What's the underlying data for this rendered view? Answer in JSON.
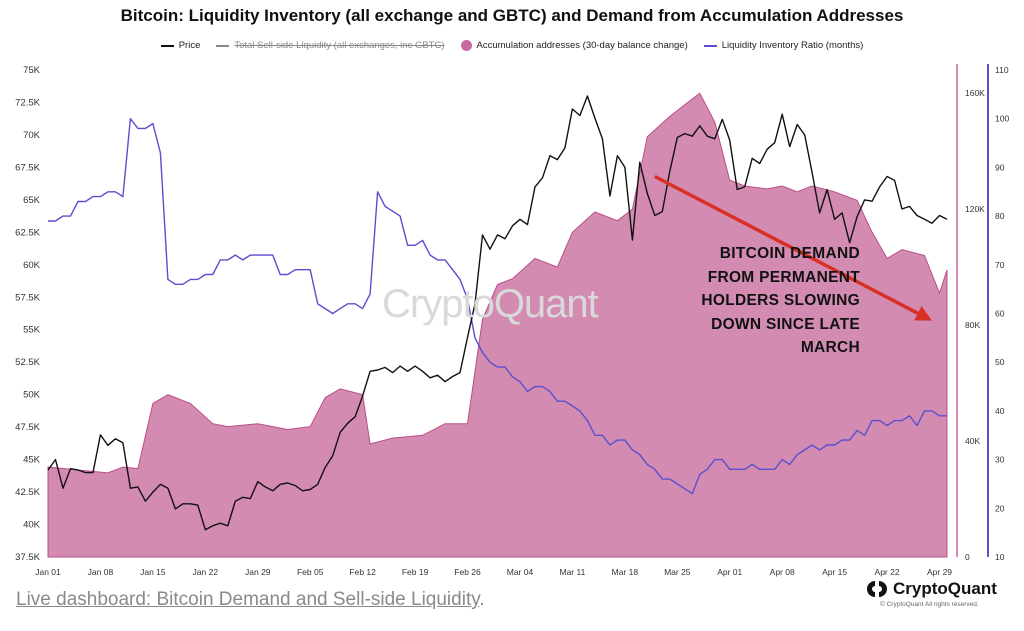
{
  "chart_data": {
    "type": "line",
    "title": "Bitcoin: Liquidity Inventory (all exchange and GBTC) and Demand from Accumulation Addresses",
    "legend": [
      {
        "name": "Price",
        "style": "line",
        "color": "#111111"
      },
      {
        "name": "Total Sell-side Liquidity (all exchanges, inc GBTC)",
        "style": "line-strikethrough",
        "color": "#888888"
      },
      {
        "name": "Accumulation addresses (30-day balance change)",
        "style": "dot",
        "color": "#c86a9c"
      },
      {
        "name": "Liquidity Inventory Ratio (months)",
        "style": "line",
        "color": "#5a4fcf"
      }
    ],
    "legend_position": "top-center",
    "x_ticks": [
      "Jan 01",
      "Jan 08",
      "Jan 15",
      "Jan 22",
      "Jan 29",
      "Feb 05",
      "Feb 12",
      "Feb 19",
      "Feb 26",
      "Mar 04",
      "Mar 11",
      "Mar 18",
      "Mar 25",
      "Apr 01",
      "Apr 08",
      "Apr 15",
      "Apr 22",
      "Apr 29"
    ],
    "x_range": [
      "2024-01-01",
      "2024-04-30"
    ],
    "y_left": {
      "label": "Price",
      "ticks": [
        "37.5K",
        "40K",
        "42.5K",
        "45K",
        "47.5K",
        "50K",
        "52.5K",
        "55K",
        "57.5K",
        "60K",
        "62.5K",
        "65K",
        "67.5K",
        "70K",
        "72.5K",
        "75K"
      ],
      "range": [
        37500,
        75000
      ]
    },
    "y_right_inner": {
      "label": "Accumulation addresses",
      "ticks": [
        "0",
        "40K",
        "80K",
        "120K",
        "160K"
      ],
      "range": [
        0,
        168000
      ]
    },
    "y_right_outer": {
      "label": "Liquidity Inventory Ratio (months)",
      "ticks": [
        "10",
        "20",
        "30",
        "40",
        "50",
        "60",
        "70",
        "80",
        "90",
        "100",
        "110"
      ],
      "range": [
        10,
        110
      ]
    },
    "grid": false,
    "series": [
      {
        "name": "Accumulation addresses (30-day balance change)",
        "type": "area",
        "axis": "right_inner",
        "color": "#c86a9c",
        "x": [
          "2024-01-01",
          "2024-01-05",
          "2024-01-09",
          "2024-01-11",
          "2024-01-13",
          "2024-01-15",
          "2024-01-17",
          "2024-01-20",
          "2024-01-23",
          "2024-01-25",
          "2024-01-29",
          "2024-02-02",
          "2024-02-05",
          "2024-02-07",
          "2024-02-09",
          "2024-02-12",
          "2024-02-13",
          "2024-02-16",
          "2024-02-20",
          "2024-02-23",
          "2024-02-26",
          "2024-02-28",
          "2024-03-01",
          "2024-03-03",
          "2024-03-06",
          "2024-03-09",
          "2024-03-11",
          "2024-03-14",
          "2024-03-17",
          "2024-03-19",
          "2024-03-21",
          "2024-03-24",
          "2024-03-26",
          "2024-03-28",
          "2024-03-30",
          "2024-04-01",
          "2024-04-03",
          "2024-04-06",
          "2024-04-08",
          "2024-04-10",
          "2024-04-12",
          "2024-04-15",
          "2024-04-18",
          "2024-04-20",
          "2024-04-22",
          "2024-04-24",
          "2024-04-27",
          "2024-04-29",
          "2024-04-30"
        ],
        "values": [
          31000,
          30000,
          29000,
          31000,
          30500,
          53000,
          56000,
          53000,
          46000,
          45000,
          46000,
          44000,
          45000,
          55000,
          58000,
          56000,
          39000,
          41000,
          42000,
          46000,
          46000,
          82000,
          94000,
          96000,
          103000,
          100000,
          112000,
          119000,
          116000,
          120000,
          145000,
          152000,
          156000,
          160000,
          150000,
          130000,
          128000,
          127000,
          128000,
          126000,
          128000,
          126000,
          123000,
          112000,
          103000,
          106000,
          104000,
          91000,
          99000
        ]
      },
      {
        "name": "Price",
        "type": "line",
        "axis": "left",
        "color": "#111111",
        "x": [
          "2024-01-01",
          "2024-01-02",
          "2024-01-03",
          "2024-01-04",
          "2024-01-05",
          "2024-01-06",
          "2024-01-07",
          "2024-01-08",
          "2024-01-09",
          "2024-01-10",
          "2024-01-11",
          "2024-01-12",
          "2024-01-13",
          "2024-01-14",
          "2024-01-15",
          "2024-01-16",
          "2024-01-17",
          "2024-01-18",
          "2024-01-19",
          "2024-01-20",
          "2024-01-21",
          "2024-01-22",
          "2024-01-23",
          "2024-01-24",
          "2024-01-25",
          "2024-01-26",
          "2024-01-27",
          "2024-01-28",
          "2024-01-29",
          "2024-01-30",
          "2024-01-31",
          "2024-02-01",
          "2024-02-02",
          "2024-02-03",
          "2024-02-04",
          "2024-02-05",
          "2024-02-06",
          "2024-02-07",
          "2024-02-08",
          "2024-02-09",
          "2024-02-10",
          "2024-02-11",
          "2024-02-12",
          "2024-02-13",
          "2024-02-14",
          "2024-02-15",
          "2024-02-16",
          "2024-02-17",
          "2024-02-18",
          "2024-02-19",
          "2024-02-20",
          "2024-02-21",
          "2024-02-22",
          "2024-02-23",
          "2024-02-24",
          "2024-02-25",
          "2024-02-26",
          "2024-02-27",
          "2024-02-28",
          "2024-02-29",
          "2024-03-01",
          "2024-03-02",
          "2024-03-03",
          "2024-03-04",
          "2024-03-05",
          "2024-03-06",
          "2024-03-07",
          "2024-03-08",
          "2024-03-09",
          "2024-03-10",
          "2024-03-11",
          "2024-03-12",
          "2024-03-13",
          "2024-03-14",
          "2024-03-15",
          "2024-03-16",
          "2024-03-17",
          "2024-03-18",
          "2024-03-19",
          "2024-03-20",
          "2024-03-21",
          "2024-03-22",
          "2024-03-23",
          "2024-03-24",
          "2024-03-25",
          "2024-03-26",
          "2024-03-27",
          "2024-03-28",
          "2024-03-29",
          "2024-03-30",
          "2024-03-31",
          "2024-04-01",
          "2024-04-02",
          "2024-04-03",
          "2024-04-04",
          "2024-04-05",
          "2024-04-06",
          "2024-04-07",
          "2024-04-08",
          "2024-04-09",
          "2024-04-10",
          "2024-04-11",
          "2024-04-12",
          "2024-04-13",
          "2024-04-14",
          "2024-04-15",
          "2024-04-16",
          "2024-04-17",
          "2024-04-18",
          "2024-04-19",
          "2024-04-20",
          "2024-04-21",
          "2024-04-22",
          "2024-04-23",
          "2024-04-24",
          "2024-04-25",
          "2024-04-26",
          "2024-04-27",
          "2024-04-28",
          "2024-04-29",
          "2024-04-30"
        ],
        "values": [
          44200,
          45000,
          42800,
          44300,
          44200,
          44000,
          44000,
          46900,
          46100,
          46600,
          46300,
          42800,
          42900,
          41800,
          42500,
          43100,
          42800,
          41200,
          41600,
          41600,
          41500,
          39600,
          39900,
          40100,
          39900,
          41800,
          42100,
          42000,
          43300,
          42900,
          42600,
          43100,
          43200,
          43000,
          42600,
          42700,
          43100,
          44400,
          45300,
          47100,
          47800,
          48300,
          49900,
          51800,
          51900,
          52100,
          51700,
          52200,
          51800,
          52200,
          51800,
          51300,
          51500,
          51000,
          51400,
          51700,
          54400,
          57000,
          62300,
          61200,
          62300,
          62000,
          63000,
          63500,
          63100,
          66000,
          66700,
          68400,
          68100,
          69000,
          72000,
          71500,
          73000,
          71300,
          69700,
          65300,
          68400,
          67500,
          61900,
          67900,
          65500,
          63800,
          64100,
          67200,
          69800,
          70100,
          69900,
          70700,
          69900,
          69700,
          71200,
          69600,
          65800,
          66000,
          68200,
          67800,
          68900,
          69400,
          71600,
          69100,
          70800,
          70000,
          67100,
          64000,
          65800,
          63500,
          64000,
          61700,
          63700,
          65000,
          64900,
          66000,
          66800,
          66500,
          64300,
          64500,
          63800,
          63500,
          63200,
          63800,
          63500
        ]
      },
      {
        "name": "Liquidity Inventory Ratio (months)",
        "type": "line",
        "axis": "right_outer",
        "color": "#5a4fcf",
        "x": [
          "2024-01-01",
          "2024-01-02",
          "2024-01-03",
          "2024-01-04",
          "2024-01-05",
          "2024-01-06",
          "2024-01-07",
          "2024-01-08",
          "2024-01-09",
          "2024-01-10",
          "2024-01-11",
          "2024-01-12",
          "2024-01-13",
          "2024-01-14",
          "2024-01-15",
          "2024-01-16",
          "2024-01-17",
          "2024-01-18",
          "2024-01-19",
          "2024-01-20",
          "2024-01-21",
          "2024-01-22",
          "2024-01-23",
          "2024-01-24",
          "2024-01-25",
          "2024-01-26",
          "2024-01-27",
          "2024-01-28",
          "2024-01-29",
          "2024-01-30",
          "2024-01-31",
          "2024-02-01",
          "2024-02-02",
          "2024-02-03",
          "2024-02-04",
          "2024-02-05",
          "2024-02-06",
          "2024-02-07",
          "2024-02-08",
          "2024-02-09",
          "2024-02-10",
          "2024-02-11",
          "2024-02-12",
          "2024-02-13",
          "2024-02-14",
          "2024-02-15",
          "2024-02-16",
          "2024-02-17",
          "2024-02-18",
          "2024-02-19",
          "2024-02-20",
          "2024-02-21",
          "2024-02-22",
          "2024-02-23",
          "2024-02-24",
          "2024-02-25",
          "2024-02-26",
          "2024-02-27",
          "2024-02-28",
          "2024-02-29",
          "2024-03-01",
          "2024-03-02",
          "2024-03-03",
          "2024-03-04",
          "2024-03-05",
          "2024-03-06",
          "2024-03-07",
          "2024-03-08",
          "2024-03-09",
          "2024-03-10",
          "2024-03-11",
          "2024-03-12",
          "2024-03-13",
          "2024-03-14",
          "2024-03-15",
          "2024-03-16",
          "2024-03-17",
          "2024-03-18",
          "2024-03-19",
          "2024-03-20",
          "2024-03-21",
          "2024-03-22",
          "2024-03-23",
          "2024-03-24",
          "2024-03-25",
          "2024-03-26",
          "2024-03-27",
          "2024-03-28",
          "2024-03-29",
          "2024-03-30",
          "2024-03-31",
          "2024-04-01",
          "2024-04-02",
          "2024-04-03",
          "2024-04-04",
          "2024-04-05",
          "2024-04-06",
          "2024-04-07",
          "2024-04-08",
          "2024-04-09",
          "2024-04-10",
          "2024-04-11",
          "2024-04-12",
          "2024-04-13",
          "2024-04-14",
          "2024-04-15",
          "2024-04-16",
          "2024-04-17",
          "2024-04-18",
          "2024-04-19",
          "2024-04-20",
          "2024-04-21",
          "2024-04-22",
          "2024-04-23",
          "2024-04-24",
          "2024-04-25",
          "2024-04-26",
          "2024-04-27",
          "2024-04-28",
          "2024-04-29",
          "2024-04-30"
        ],
        "values": [
          79,
          79,
          80,
          80,
          83,
          83,
          84,
          84,
          85,
          85,
          84,
          100,
          98,
          98,
          99,
          93,
          67,
          66,
          66,
          67,
          67,
          68,
          68,
          71,
          71,
          72,
          71,
          72,
          72,
          72,
          72,
          68,
          68,
          69,
          69,
          69,
          62,
          61,
          60,
          61,
          62,
          62,
          61,
          64,
          85,
          82,
          81,
          80,
          74,
          74,
          75,
          72,
          71,
          71,
          69,
          67,
          63,
          55,
          52,
          50,
          49,
          49,
          47,
          46,
          44,
          45,
          45,
          44,
          42,
          42,
          41,
          40,
          38,
          35,
          35,
          33,
          34,
          34,
          32,
          31,
          29,
          28,
          26,
          26,
          25,
          24,
          23,
          27,
          28,
          30,
          30,
          28,
          28,
          28,
          29,
          28,
          28,
          28,
          30,
          29,
          31,
          32,
          33,
          32,
          33,
          33,
          34,
          34,
          36,
          35,
          38,
          38,
          37,
          38,
          38,
          39,
          37,
          40,
          40,
          39,
          39
        ]
      }
    ],
    "annotations": [
      {
        "type": "arrow",
        "color": "#d93025",
        "from": [
          "2024-03-22",
          66800
        ],
        "to": [
          "2024-04-28",
          55700
        ]
      },
      {
        "type": "text",
        "text": "BITCOIN DEMAND FROM PERMANENT HOLDERS SLOWING DOWN SINCE LATE MARCH"
      }
    ]
  },
  "callout": {
    "line1": "BITCOIN DEMAND",
    "line2": "FROM PERMANENT",
    "line3": "HOLDERS SLOWING",
    "line4": "DOWN SINCE LATE",
    "line5": "MARCH"
  },
  "watermark": "CryptoQuant",
  "footer": {
    "link_text": "Live dashboard: Bitcoin Demand and Sell-side Liquidity",
    "link_suffix": ".",
    "brand": "CryptoQuant",
    "copyright": "© CryptoQuant All rights reserved."
  },
  "colors": {
    "area": "#c86a9c",
    "area_edge": "#b94f89",
    "price": "#111111",
    "ratio": "#5a4fcf",
    "arrow": "#d93025",
    "axis_pink": "#d98ab5",
    "axis_blue": "#5a4fcf"
  }
}
